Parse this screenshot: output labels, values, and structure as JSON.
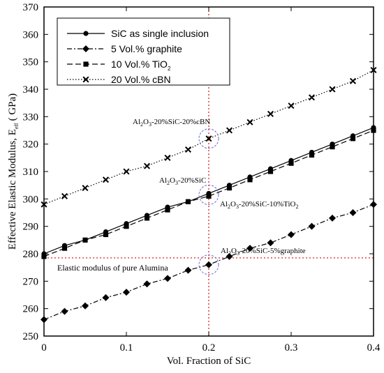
{
  "chart_data": {
    "type": "line",
    "xlabel": "Vol. Fraction of SiC",
    "ylabel_main": "Effective Elastic Modulus, E",
    "ylabel_sub": "eff",
    "ylabel_unit": "( GPa)",
    "xlim": [
      0,
      0.4
    ],
    "ylim": [
      250,
      370
    ],
    "x_ticks": [
      0,
      0.1,
      0.2,
      0.3,
      0.4
    ],
    "x_tick_labels": [
      "0",
      "0.1",
      "0.2",
      "0.3",
      "0.4"
    ],
    "y_ticks": [
      250,
      260,
      270,
      280,
      290,
      300,
      310,
      320,
      330,
      340,
      350,
      360,
      370
    ],
    "y_tick_labels": [
      "250",
      "260",
      "270",
      "280",
      "290",
      "300",
      "310",
      "320",
      "330",
      "340",
      "350",
      "360",
      "370"
    ],
    "grid": false,
    "legend_position": "top-left",
    "x": [
      0,
      0.025,
      0.05,
      0.075,
      0.1,
      0.125,
      0.15,
      0.175,
      0.2,
      0.225,
      0.25,
      0.275,
      0.3,
      0.325,
      0.35,
      0.375,
      0.4
    ],
    "series": [
      {
        "name": "SiC as single inclusion",
        "name_main": "SiC as single inclusion",
        "name_sub": "",
        "marker": "circle",
        "dash": "solid",
        "values": [
          280,
          283,
          285,
          288,
          291,
          294,
          297,
          299,
          302,
          305,
          308,
          311,
          314,
          317,
          320,
          323,
          326
        ]
      },
      {
        "name": "5 Vol.% graphite",
        "name_main": "5 Vol.% graphite",
        "name_sub": "",
        "marker": "diamond",
        "dash": "dashdot",
        "values": [
          256,
          259,
          261,
          264,
          266,
          269,
          271,
          274,
          276,
          279,
          282,
          284,
          287,
          290,
          293,
          295,
          298
        ]
      },
      {
        "name": "10 Vol.% TiO2",
        "name_main": "10 Vol.% TiO",
        "name_sub": "2",
        "marker": "square",
        "dash": "longdash",
        "values": [
          279,
          282,
          285,
          287,
          290,
          293,
          296,
          299,
          301,
          304,
          307,
          310,
          313,
          316,
          319,
          322,
          325
        ]
      },
      {
        "name": "20 Vol.% cBN",
        "name_main": "20 Vol.% cBN",
        "name_sub": "",
        "marker": "cross",
        "dash": "dotted",
        "values": [
          298,
          301,
          304,
          307,
          310,
          312,
          315,
          318,
          322,
          325,
          328,
          331,
          334,
          337,
          340,
          343,
          347
        ]
      }
    ],
    "reference_lines": {
      "vertical_x": 0.2,
      "horizontal_y": 278.5,
      "horizontal_label": "Elastic modulus of pure Alumina",
      "color": "#e0201e"
    },
    "annotations": [
      {
        "id": "cbn",
        "x": 0.2,
        "y": 322,
        "parts": [
          "Al",
          "2",
          "O",
          "3",
          "-20%SiC-20%cBN"
        ]
      },
      {
        "id": "sic",
        "x": 0.2,
        "y": 302,
        "parts": [
          "Al",
          "2",
          "O",
          "3",
          "-20%SiC"
        ]
      },
      {
        "id": "tio2",
        "x": 0.2,
        "y": 301,
        "parts": [
          "Al",
          "2",
          "O",
          "3",
          "-20%SiC-10%TiO",
          "2",
          "",
          "",
          ""
        ]
      },
      {
        "id": "graphite",
        "x": 0.2,
        "y": 276,
        "parts": [
          "Al",
          "2",
          "O",
          "3",
          "-20%SiC-5%graphite"
        ]
      }
    ],
    "highlight_circles": [
      {
        "x": 0.2,
        "y": 322
      },
      {
        "x": 0.2,
        "y": 301.5
      },
      {
        "x": 0.2,
        "y": 276
      }
    ],
    "circle_color": "#6a6ad8"
  }
}
